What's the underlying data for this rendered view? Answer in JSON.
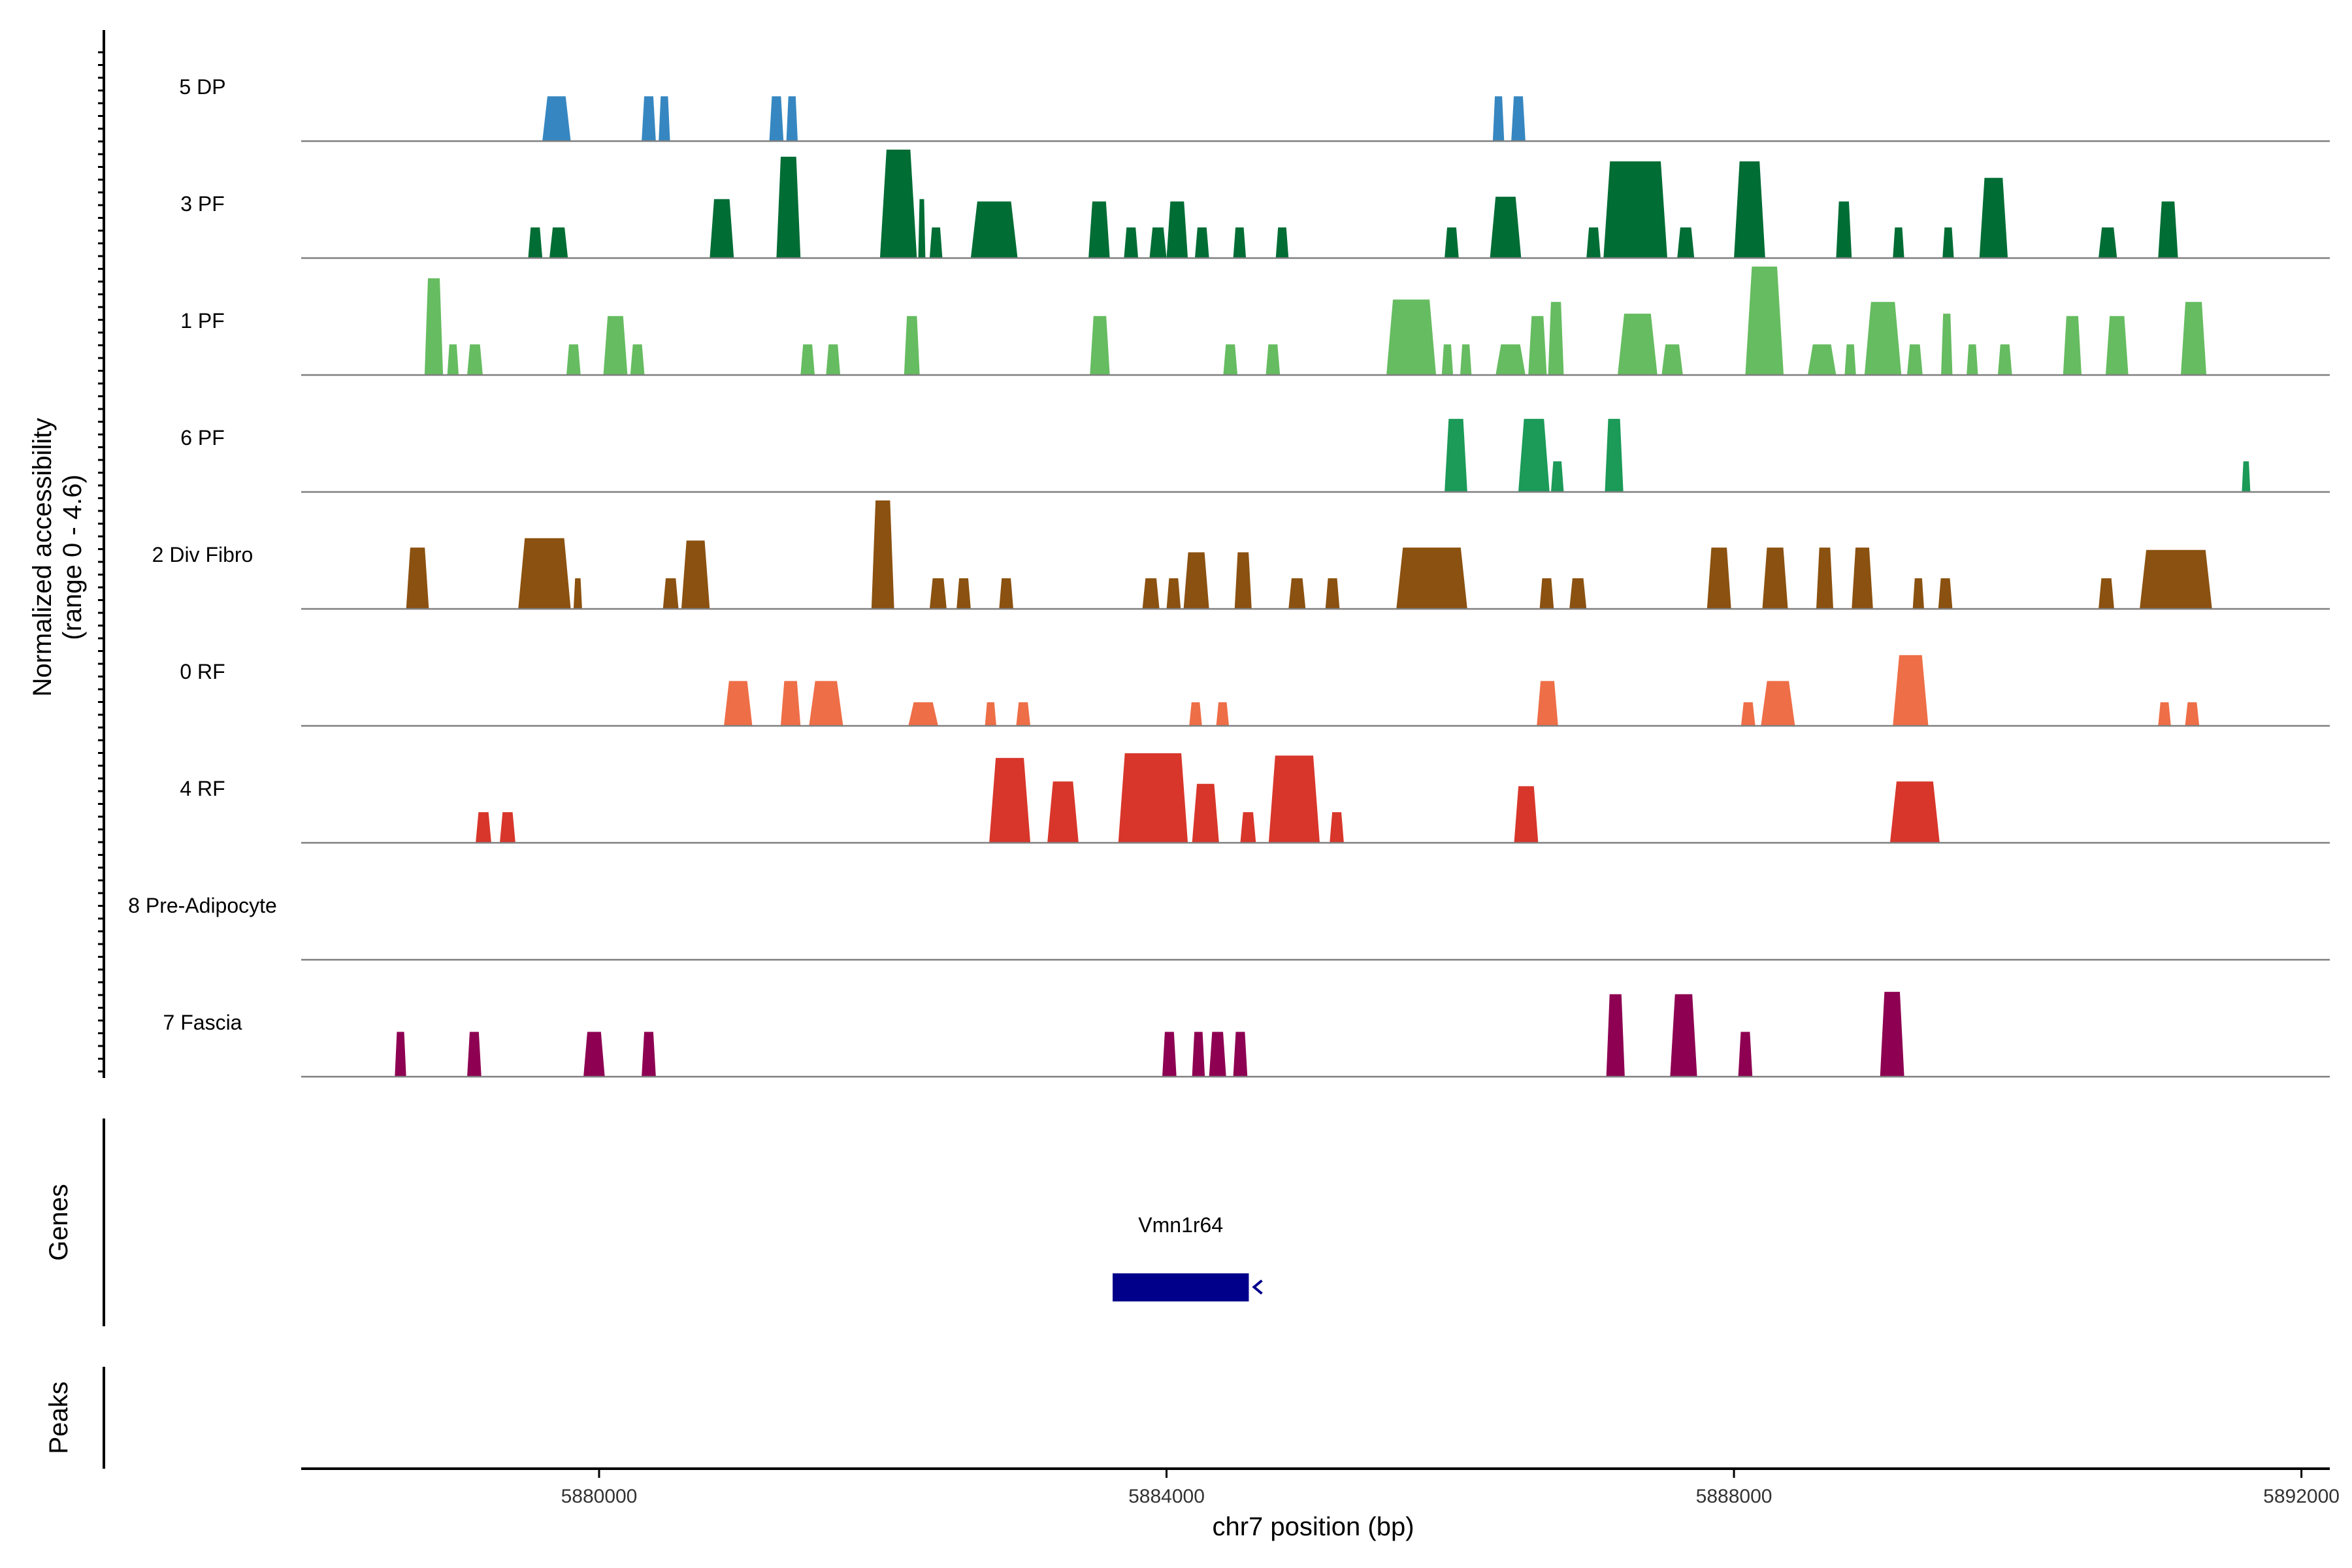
{
  "chart_data": {
    "type": "area",
    "title": "",
    "xlabel": "chr7 position (bp)",
    "ylabel_line1": "Normalized accessibility",
    "ylabel_line2": "(range 0 - 4.6)",
    "xlim": [
      5877900,
      5892200
    ],
    "x_ticks": [
      5880000,
      5884000,
      5888000,
      5892000
    ],
    "x_tick_labels": [
      "5880000",
      "5884000",
      "5888000",
      "5892000"
    ],
    "ymax": 4.6,
    "tracks": [
      {
        "name": "5 DP",
        "color": "#3687C1",
        "peaks": [
          [
            5879600,
            5879800,
            1.9
          ],
          [
            5880300,
            5880400,
            1.9
          ],
          [
            5880420,
            5880500,
            1.9
          ],
          [
            5881200,
            5881300,
            1.9
          ],
          [
            5881320,
            5881400,
            1.9
          ],
          [
            5886300,
            5886380,
            1.9
          ],
          [
            5886430,
            5886530,
            1.9
          ]
        ]
      },
      {
        "name": "3 PF",
        "color": "#006D35",
        "peaks": [
          [
            5879500,
            5879600,
            1.3
          ],
          [
            5879650,
            5879780,
            1.3
          ],
          [
            5880780,
            5880950,
            2.5
          ],
          [
            5881250,
            5881420,
            4.3
          ],
          [
            5881980,
            5882240,
            4.6
          ],
          [
            5882250,
            5882300,
            2.5
          ],
          [
            5882330,
            5882420,
            1.3
          ],
          [
            5882620,
            5882950,
            2.4
          ],
          [
            5883450,
            5883600,
            2.4
          ],
          [
            5883700,
            5883800,
            1.3
          ],
          [
            5883880,
            5884000,
            1.3
          ],
          [
            5884000,
            5884150,
            2.4
          ],
          [
            5884200,
            5884300,
            1.3
          ],
          [
            5884470,
            5884560,
            1.3
          ],
          [
            5884770,
            5884860,
            1.3
          ],
          [
            5885960,
            5886060,
            1.3
          ],
          [
            5886280,
            5886500,
            2.6
          ],
          [
            5886960,
            5887060,
            1.3
          ],
          [
            5887080,
            5887530,
            4.1
          ],
          [
            5887600,
            5887720,
            1.3
          ],
          [
            5888000,
            5888220,
            4.1
          ],
          [
            5888720,
            5888830,
            2.4
          ],
          [
            5889120,
            5889200,
            1.3
          ],
          [
            5889470,
            5889550,
            1.3
          ],
          [
            5889730,
            5889930,
            3.4
          ],
          [
            5890570,
            5890700,
            1.3
          ],
          [
            5890990,
            5891130,
            2.4
          ]
        ]
      },
      {
        "name": "1 PF",
        "color": "#66BC60",
        "peaks": [
          [
            5878770,
            5878900,
            4.1
          ],
          [
            5878930,
            5879010,
            1.3
          ],
          [
            5879070,
            5879180,
            1.3
          ],
          [
            5879770,
            5879870,
            1.3
          ],
          [
            5880030,
            5880200,
            2.5
          ],
          [
            5880220,
            5880320,
            1.3
          ],
          [
            5881420,
            5881520,
            1.3
          ],
          [
            5881600,
            5881700,
            1.3
          ],
          [
            5882150,
            5882260,
            2.5
          ],
          [
            5883460,
            5883600,
            2.5
          ],
          [
            5884400,
            5884500,
            1.3
          ],
          [
            5884700,
            5884800,
            1.3
          ],
          [
            5885550,
            5885900,
            3.2
          ],
          [
            5885940,
            5886020,
            1.3
          ],
          [
            5886070,
            5886150,
            1.3
          ],
          [
            5886320,
            5886530,
            1.3
          ],
          [
            5886550,
            5886680,
            2.5
          ],
          [
            5886690,
            5886800,
            3.1
          ],
          [
            5887180,
            5887460,
            2.6
          ],
          [
            5887490,
            5887640,
            1.3
          ],
          [
            5888080,
            5888350,
            4.6
          ],
          [
            5888520,
            5888720,
            1.3
          ],
          [
            5888780,
            5888860,
            1.3
          ],
          [
            5888920,
            5889180,
            3.1
          ],
          [
            5889220,
            5889330,
            1.3
          ],
          [
            5889460,
            5889540,
            2.6
          ],
          [
            5889640,
            5889720,
            1.3
          ],
          [
            5889860,
            5889960,
            1.3
          ],
          [
            5890320,
            5890450,
            2.5
          ],
          [
            5890620,
            5890780,
            2.5
          ],
          [
            5891150,
            5891330,
            3.1
          ]
        ]
      },
      {
        "name": "6 PF",
        "color": "#1B9A58",
        "peaks": [
          [
            5885960,
            5886120,
            3.1
          ],
          [
            5886480,
            5886700,
            3.1
          ],
          [
            5886710,
            5886800,
            1.3
          ],
          [
            5887090,
            5887220,
            3.1
          ],
          [
            5891580,
            5891640,
            1.3
          ]
        ]
      },
      {
        "name": "2 Div Fibro",
        "color": "#8B5110",
        "peaks": [
          [
            5878640,
            5878800,
            2.6
          ],
          [
            5879430,
            5879800,
            3.0
          ],
          [
            5879820,
            5879880,
            1.3
          ],
          [
            5880450,
            5880560,
            1.3
          ],
          [
            5880580,
            5880780,
            2.9
          ],
          [
            5881920,
            5882080,
            4.6
          ],
          [
            5882330,
            5882450,
            1.3
          ],
          [
            5882520,
            5882620,
            1.3
          ],
          [
            5882820,
            5882920,
            1.3
          ],
          [
            5883830,
            5883950,
            1.3
          ],
          [
            5884000,
            5884100,
            1.3
          ],
          [
            5884120,
            5884300,
            2.4
          ],
          [
            5884480,
            5884600,
            2.4
          ],
          [
            5884860,
            5884980,
            1.3
          ],
          [
            5885120,
            5885220,
            1.3
          ],
          [
            5885620,
            5886120,
            2.6
          ],
          [
            5886630,
            5886730,
            1.3
          ],
          [
            5886840,
            5886960,
            1.3
          ],
          [
            5887810,
            5887980,
            2.6
          ],
          [
            5888200,
            5888380,
            2.6
          ],
          [
            5888580,
            5888700,
            2.6
          ],
          [
            5888830,
            5888980,
            2.6
          ],
          [
            5889260,
            5889340,
            1.3
          ],
          [
            5889440,
            5889540,
            1.3
          ],
          [
            5890570,
            5890680,
            1.3
          ],
          [
            5890860,
            5891370,
            2.5
          ]
        ]
      },
      {
        "name": "0 RF",
        "color": "#EE6E47",
        "peaks": [
          [
            5880880,
            5881080,
            1.9
          ],
          [
            5881280,
            5881420,
            1.9
          ],
          [
            5881480,
            5881720,
            1.9
          ],
          [
            5882180,
            5882390,
            1.0
          ],
          [
            5882720,
            5882800,
            1.0
          ],
          [
            5882940,
            5883040,
            1.0
          ],
          [
            5884160,
            5884250,
            1.0
          ],
          [
            5884350,
            5884440,
            1.0
          ],
          [
            5886610,
            5886760,
            1.9
          ],
          [
            5888050,
            5888150,
            1.0
          ],
          [
            5888190,
            5888430,
            1.9
          ],
          [
            5889120,
            5889370,
            3.0
          ],
          [
            5890990,
            5891080,
            1.0
          ],
          [
            5891180,
            5891280,
            1.0
          ]
        ]
      },
      {
        "name": "4 RF",
        "color": "#D8362A",
        "peaks": [
          [
            5879130,
            5879240,
            1.3
          ],
          [
            5879300,
            5879410,
            1.3
          ],
          [
            5882750,
            5883040,
            3.6
          ],
          [
            5883160,
            5883380,
            2.6
          ],
          [
            5883660,
            5884150,
            3.8
          ],
          [
            5884180,
            5884370,
            2.5
          ],
          [
            5884520,
            5884630,
            1.3
          ],
          [
            5884720,
            5885080,
            3.7
          ],
          [
            5885150,
            5885250,
            1.3
          ],
          [
            5886450,
            5886620,
            2.4
          ],
          [
            5889100,
            5889450,
            2.6
          ]
        ]
      },
      {
        "name": "8 Pre-Adipocyte",
        "color": "#C51B7D",
        "peaks": []
      },
      {
        "name": "7 Fascia",
        "color": "#8E0152",
        "peaks": [
          [
            5878560,
            5878640,
            1.9
          ],
          [
            5879070,
            5879170,
            1.9
          ],
          [
            5879890,
            5880040,
            1.9
          ],
          [
            5880300,
            5880400,
            1.9
          ],
          [
            5883970,
            5884070,
            1.9
          ],
          [
            5884180,
            5884270,
            1.9
          ],
          [
            5884300,
            5884420,
            1.9
          ],
          [
            5884470,
            5884570,
            1.9
          ],
          [
            5887100,
            5887230,
            3.5
          ],
          [
            5887550,
            5887740,
            3.5
          ],
          [
            5888030,
            5888130,
            1.9
          ],
          [
            5889030,
            5889200,
            3.6
          ]
        ]
      }
    ],
    "genes": [
      {
        "name": "Vmn1r64",
        "start": 5883620,
        "end": 5884580,
        "strand": "-",
        "color": "#00008B"
      }
    ],
    "gene_panel_label": "Genes",
    "peaks_panel_label": "Peaks"
  }
}
